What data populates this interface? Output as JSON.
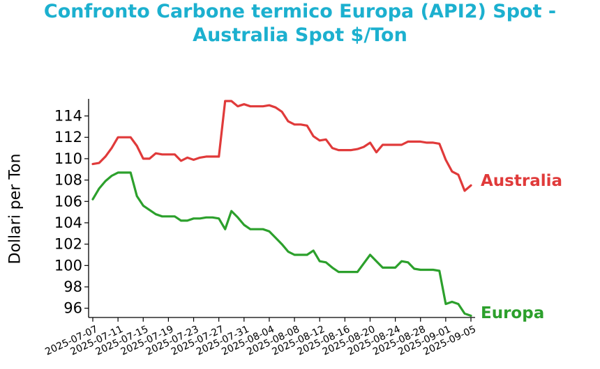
{
  "chart_data": {
    "type": "line",
    "title_lines": [
      "Confronto Carbone termico Europa (API2) Spot -",
      "Australia Spot $/Ton"
    ],
    "ylabel": "Dollari per Ton",
    "ylim": [
      95.2,
      115.6
    ],
    "yticks": [
      96,
      98,
      100,
      102,
      104,
      106,
      108,
      110,
      112,
      114
    ],
    "x_range": [
      "2025-07-07",
      "2025-09-05"
    ],
    "xticks": [
      "2025-07-07",
      "2025-07-11",
      "2025-07-15",
      "2025-07-19",
      "2025-07-23",
      "2025-07-27",
      "2025-07-31",
      "2025-08-04",
      "2025-08-08",
      "2025-08-12",
      "2025-08-16",
      "2025-08-20",
      "2025-08-24",
      "2025-08-28",
      "2025-09-01",
      "2025-09-05"
    ],
    "colors": {
      "title": "#1cb0cf",
      "australia": "#e03a3a",
      "europa": "#2ca02c"
    },
    "series": [
      {
        "name": "Australia",
        "color": "#e03a3a",
        "points": [
          [
            "2025-07-07",
            109.5
          ],
          [
            "2025-07-08",
            109.6
          ],
          [
            "2025-07-09",
            110.2
          ],
          [
            "2025-07-10",
            111.0
          ],
          [
            "2025-07-11",
            112.0
          ],
          [
            "2025-07-12",
            112.0
          ],
          [
            "2025-07-13",
            112.0
          ],
          [
            "2025-07-14",
            111.2
          ],
          [
            "2025-07-15",
            110.0
          ],
          [
            "2025-07-16",
            110.0
          ],
          [
            "2025-07-17",
            110.5
          ],
          [
            "2025-07-18",
            110.4
          ],
          [
            "2025-07-19",
            110.4
          ],
          [
            "2025-07-20",
            110.4
          ],
          [
            "2025-07-21",
            109.8
          ],
          [
            "2025-07-22",
            110.1
          ],
          [
            "2025-07-23",
            109.9
          ],
          [
            "2025-07-24",
            110.1
          ],
          [
            "2025-07-25",
            110.2
          ],
          [
            "2025-07-26",
            110.2
          ],
          [
            "2025-07-27",
            110.2
          ],
          [
            "2025-07-28",
            115.4
          ],
          [
            "2025-07-29",
            115.4
          ],
          [
            "2025-07-30",
            114.9
          ],
          [
            "2025-07-31",
            115.1
          ],
          [
            "2025-08-01",
            114.9
          ],
          [
            "2025-08-02",
            114.9
          ],
          [
            "2025-08-03",
            114.9
          ],
          [
            "2025-08-04",
            115.0
          ],
          [
            "2025-08-05",
            114.8
          ],
          [
            "2025-08-06",
            114.4
          ],
          [
            "2025-08-07",
            113.5
          ],
          [
            "2025-08-08",
            113.2
          ],
          [
            "2025-08-09",
            113.2
          ],
          [
            "2025-08-10",
            113.1
          ],
          [
            "2025-08-11",
            112.1
          ],
          [
            "2025-08-12",
            111.7
          ],
          [
            "2025-08-13",
            111.8
          ],
          [
            "2025-08-14",
            111.0
          ],
          [
            "2025-08-15",
            110.8
          ],
          [
            "2025-08-16",
            110.8
          ],
          [
            "2025-08-17",
            110.8
          ],
          [
            "2025-08-18",
            110.9
          ],
          [
            "2025-08-19",
            111.1
          ],
          [
            "2025-08-20",
            111.5
          ],
          [
            "2025-08-21",
            110.6
          ],
          [
            "2025-08-22",
            111.3
          ],
          [
            "2025-08-23",
            111.3
          ],
          [
            "2025-08-24",
            111.3
          ],
          [
            "2025-08-25",
            111.3
          ],
          [
            "2025-08-26",
            111.6
          ],
          [
            "2025-08-27",
            111.6
          ],
          [
            "2025-08-28",
            111.6
          ],
          [
            "2025-08-29",
            111.5
          ],
          [
            "2025-08-30",
            111.5
          ],
          [
            "2025-08-31",
            111.4
          ],
          [
            "2025-09-01",
            109.9
          ],
          [
            "2025-09-02",
            108.8
          ],
          [
            "2025-09-03",
            108.5
          ],
          [
            "2025-09-04",
            107.0
          ],
          [
            "2025-09-05",
            107.5
          ]
        ]
      },
      {
        "name": "Europa",
        "color": "#2ca02c",
        "points": [
          [
            "2025-07-07",
            106.2
          ],
          [
            "2025-07-08",
            107.2
          ],
          [
            "2025-07-09",
            107.9
          ],
          [
            "2025-07-10",
            108.4
          ],
          [
            "2025-07-11",
            108.7
          ],
          [
            "2025-07-12",
            108.7
          ],
          [
            "2025-07-13",
            108.7
          ],
          [
            "2025-07-14",
            106.5
          ],
          [
            "2025-07-15",
            105.6
          ],
          [
            "2025-07-16",
            105.2
          ],
          [
            "2025-07-17",
            104.8
          ],
          [
            "2025-07-18",
            104.6
          ],
          [
            "2025-07-19",
            104.6
          ],
          [
            "2025-07-20",
            104.6
          ],
          [
            "2025-07-21",
            104.2
          ],
          [
            "2025-07-22",
            104.2
          ],
          [
            "2025-07-23",
            104.4
          ],
          [
            "2025-07-24",
            104.4
          ],
          [
            "2025-07-25",
            104.5
          ],
          [
            "2025-07-26",
            104.5
          ],
          [
            "2025-07-27",
            104.4
          ],
          [
            "2025-07-28",
            103.4
          ],
          [
            "2025-07-29",
            105.1
          ],
          [
            "2025-07-30",
            104.5
          ],
          [
            "2025-07-31",
            103.8
          ],
          [
            "2025-08-01",
            103.4
          ],
          [
            "2025-08-02",
            103.4
          ],
          [
            "2025-08-03",
            103.4
          ],
          [
            "2025-08-04",
            103.2
          ],
          [
            "2025-08-05",
            102.6
          ],
          [
            "2025-08-06",
            102.0
          ],
          [
            "2025-08-07",
            101.3
          ],
          [
            "2025-08-08",
            101.0
          ],
          [
            "2025-08-09",
            101.0
          ],
          [
            "2025-08-10",
            101.0
          ],
          [
            "2025-08-11",
            101.4
          ],
          [
            "2025-08-12",
            100.4
          ],
          [
            "2025-08-13",
            100.3
          ],
          [
            "2025-08-14",
            99.8
          ],
          [
            "2025-08-15",
            99.4
          ],
          [
            "2025-08-16",
            99.4
          ],
          [
            "2025-08-17",
            99.4
          ],
          [
            "2025-08-18",
            99.4
          ],
          [
            "2025-08-19",
            100.2
          ],
          [
            "2025-08-20",
            101.0
          ],
          [
            "2025-08-21",
            100.4
          ],
          [
            "2025-08-22",
            99.8
          ],
          [
            "2025-08-23",
            99.8
          ],
          [
            "2025-08-24",
            99.8
          ],
          [
            "2025-08-25",
            100.4
          ],
          [
            "2025-08-26",
            100.3
          ],
          [
            "2025-08-27",
            99.7
          ],
          [
            "2025-08-28",
            99.6
          ],
          [
            "2025-08-29",
            99.6
          ],
          [
            "2025-08-30",
            99.6
          ],
          [
            "2025-08-31",
            99.5
          ],
          [
            "2025-09-01",
            96.4
          ],
          [
            "2025-09-02",
            96.6
          ],
          [
            "2025-09-03",
            96.4
          ],
          [
            "2025-09-04",
            95.5
          ],
          [
            "2025-09-05",
            95.3
          ]
        ]
      }
    ]
  }
}
